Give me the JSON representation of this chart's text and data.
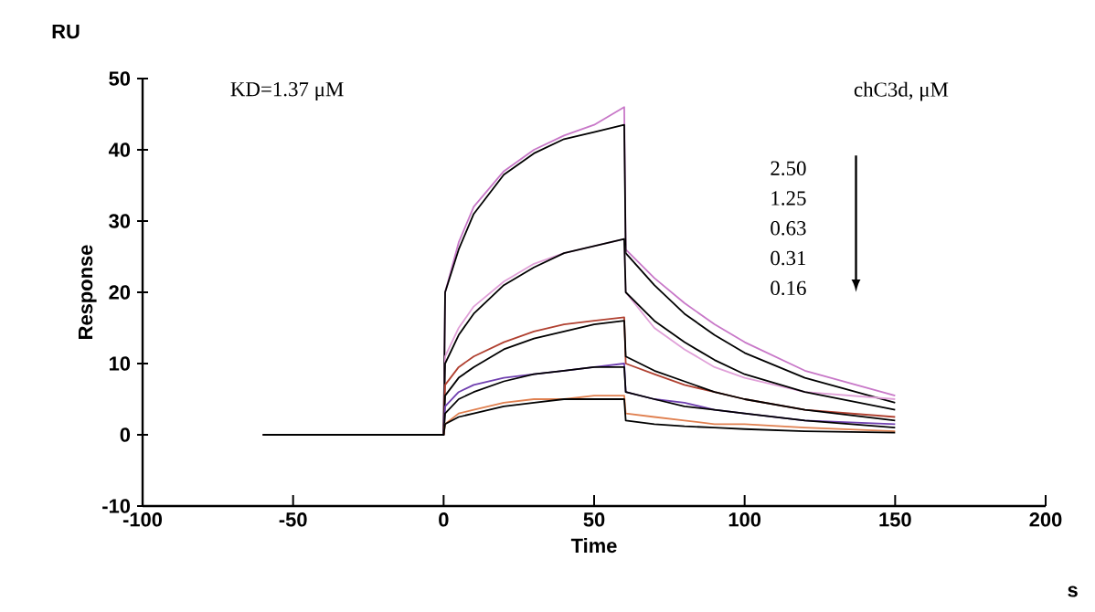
{
  "chart_data": {
    "type": "line",
    "xlabel": "Time",
    "ylabel": "Response",
    "annotations": [
      "KD=1.37 μM",
      "chC3d, μM",
      "2.50",
      "1.25",
      "0.63",
      "0.31",
      "0.16",
      "RU",
      "s"
    ],
    "x": [
      -60,
      -30,
      0,
      0.5,
      5,
      10,
      20,
      30,
      40,
      50,
      60,
      60.5,
      70,
      80,
      90,
      100,
      120,
      150
    ],
    "xlim": [
      -100,
      200
    ],
    "xticks": [
      -100,
      -50,
      0,
      50,
      100,
      150,
      200
    ],
    "ylim": [
      -10,
      50
    ],
    "yticks": [
      -10,
      0,
      10,
      20,
      30,
      40,
      50
    ],
    "grid": false,
    "marker": "none",
    "line_style": "solid",
    "series": [
      {
        "color": "#c878c8",
        "values": [
          0,
          0,
          0,
          20,
          27,
          32,
          37,
          40,
          42,
          43.5,
          46,
          26,
          22,
          18.5,
          15.5,
          13,
          9,
          5.5
        ]
      },
      {
        "color": "#000000",
        "values": [
          0,
          0,
          0,
          20,
          26,
          31,
          36.5,
          39.5,
          41.5,
          42.5,
          43.5,
          25.5,
          21,
          17,
          14,
          11.5,
          8,
          4.5
        ]
      },
      {
        "color": "#e0a0d8",
        "values": [
          0,
          0,
          0,
          11,
          15,
          18,
          21.5,
          24,
          25.5,
          26.5,
          27.5,
          20,
          15,
          12,
          9.5,
          8,
          6,
          5
        ]
      },
      {
        "color": "#000000",
        "values": [
          0,
          0,
          0,
          10,
          14,
          17,
          21,
          23.5,
          25.5,
          26.5,
          27.5,
          20,
          16,
          13,
          10.5,
          8.5,
          6,
          3.5
        ]
      },
      {
        "color": "#b04030",
        "values": [
          0,
          0,
          0,
          7,
          9.5,
          11,
          13,
          14.5,
          15.5,
          16,
          16.5,
          10,
          8.5,
          7,
          6,
          5,
          3.5,
          2.5
        ]
      },
      {
        "color": "#000000",
        "values": [
          0,
          0,
          0,
          5.5,
          8,
          9.5,
          12,
          13.5,
          14.5,
          15.5,
          16,
          11,
          9,
          7.5,
          6,
          5,
          3.5,
          2
        ]
      },
      {
        "color": "#7040b0",
        "values": [
          null,
          null,
          0,
          4,
          6,
          7,
          8,
          8.5,
          9,
          9.5,
          10,
          6,
          5,
          4.5,
          3.5,
          3,
          2,
          1.5
        ]
      },
      {
        "color": "#000000",
        "values": [
          0,
          0,
          0,
          3,
          5,
          6,
          7.5,
          8.5,
          9,
          9.5,
          9.5,
          6,
          5,
          4,
          3.5,
          3,
          2,
          1
        ]
      },
      {
        "color": "#e08050",
        "values": [
          null,
          null,
          0,
          1.5,
          3,
          3.5,
          4.5,
          5,
          5,
          5.5,
          5.5,
          3,
          2.5,
          2,
          1.5,
          1.5,
          1,
          0.5
        ]
      },
      {
        "color": "#000000",
        "values": [
          0,
          0,
          0,
          1.5,
          2.5,
          3,
          4,
          4.5,
          5,
          5,
          5,
          2,
          1.5,
          1.2,
          1,
          0.8,
          0.5,
          0.3
        ]
      }
    ]
  }
}
